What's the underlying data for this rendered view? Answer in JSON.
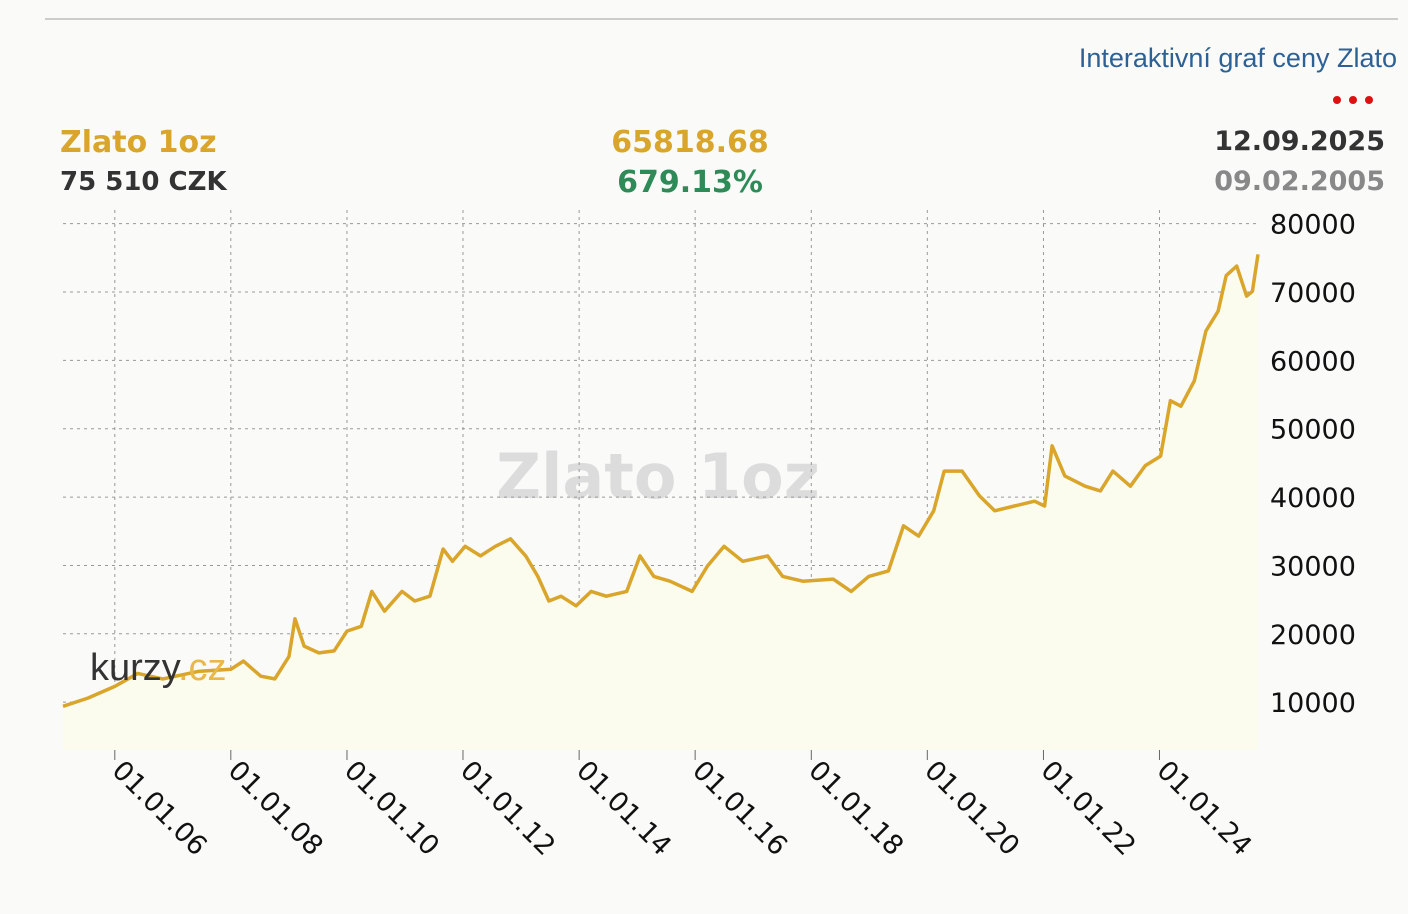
{
  "header": {
    "link": "Interaktivní graf ceny Zlato",
    "price": "75 510 CZK",
    "change_value": "65818.68",
    "change_percent": "679.13%",
    "date_end": "12.09.2025",
    "date_start": "09.02.2005",
    "logo": [
      "kurzy",
      ".cz"
    ]
  },
  "chart_data": {
    "type": "line",
    "title": "Zlato 1oz",
    "color": "#d9a52a",
    "area_color": "#fbfbee",
    "grid": true,
    "x": [
      "09.02.05",
      "15.07.05",
      "01.01.06",
      "26.05.06",
      "30.10.06",
      "10.06.07",
      "01.01.08",
      "20.03.08",
      "08.07.08",
      "04.10.08",
      "01.01.09",
      "08.02.09",
      "06.04.09",
      "08.07.09",
      "12.10.09",
      "01.01.10",
      "01.04.10",
      "06.06.10",
      "25.08.10",
      "13.12.10",
      "03.03.11",
      "07.06.11",
      "29.08.11",
      "27.10.11",
      "15.01.12",
      "20.04.12",
      "23.07.12",
      "26.10.12",
      "30.01.13",
      "16.04.13",
      "25.06.13",
      "09.09.13",
      "13.12.13",
      "18.03.14",
      "21.06.14",
      "27.10.14",
      "19.01.15",
      "16.04.15",
      "27.07.15",
      "13.12.15",
      "18.03.16",
      "01.07.16",
      "26.10.16",
      "01.04.17",
      "05.07.17",
      "09.11.17",
      "18.05.18",
      "09.09.18",
      "28.12.18",
      "01.05.19",
      "04.08.19",
      "07.11.19",
      "10.02.20",
      "16.04.20",
      "07.08.20",
      "24.11.20",
      "28.02.21",
      "02.07.21",
      "06.11.21",
      "08.01.22",
      "24.02.22",
      "15.05.22",
      "20.09.22",
      "25.12.22",
      "14.03.23",
      "02.07.23",
      "04.10.23",
      "08.01.24",
      "10.03.24",
      "15.05.24",
      "07.08.24",
      "19.10.24",
      "04.01.25",
      "24.02.25",
      "01.05.25",
      "02.07.25",
      "08.08.25",
      "12.09.25"
    ],
    "values": [
      9400,
      10600,
      12300,
      14200,
      13400,
      14500,
      14800,
      16000,
      13800,
      13400,
      16700,
      22200,
      18200,
      17200,
      17500,
      20400,
      21100,
      26200,
      23300,
      26200,
      24800,
      25500,
      32400,
      30600,
      32800,
      31400,
      32800,
      33900,
      31400,
      28400,
      24800,
      25500,
      24100,
      26200,
      25500,
      26200,
      31400,
      28400,
      27700,
      26200,
      29900,
      32800,
      30600,
      31400,
      28400,
      27700,
      28000,
      26200,
      28400,
      29200,
      35800,
      34300,
      38000,
      43800,
      43800,
      40200,
      38000,
      38700,
      39400,
      38700,
      47500,
      43100,
      41600,
      40900,
      43800,
      41600,
      44600,
      46000,
      54100,
      53300,
      57000,
      64300,
      67200,
      72400,
      73800,
      69400,
      70100,
      75510
    ],
    "xlim": [
      "09.02.05",
      "12.09.25"
    ],
    "xticks": [
      "01.01.06",
      "01.01.08",
      "01.01.10",
      "01.01.12",
      "01.01.14",
      "01.01.16",
      "01.01.18",
      "01.01.20",
      "01.01.22",
      "01.01.24"
    ],
    "ylim": [
      3000,
      82000
    ],
    "yticks": [
      10000,
      20000,
      30000,
      40000,
      50000,
      60000,
      70000,
      80000
    ]
  }
}
